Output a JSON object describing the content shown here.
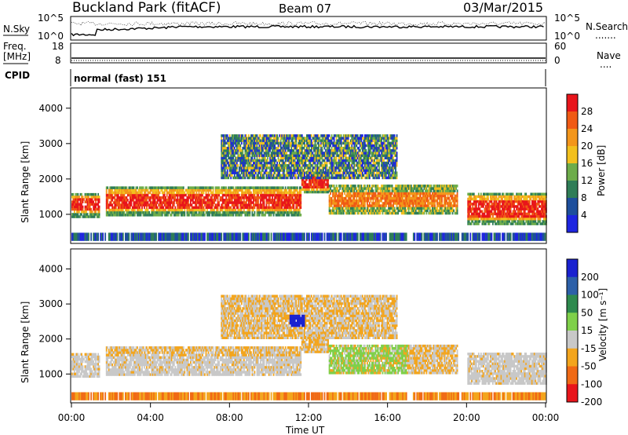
{
  "header": {
    "title": "Buckland Park (fitACF)",
    "beam": "Beam 07",
    "date": "03/Mar/2015"
  },
  "noise_panel": {
    "left_label": "N.Sky",
    "right_label": "N.Search",
    "tick_top": "10^5",
    "tick_bottom": "10^0"
  },
  "freq_panel": {
    "left_label_line1": "Freq.",
    "left_label_line2": "[MHz]",
    "left_ticks": [
      "18",
      "8"
    ],
    "right_label": "Nave",
    "right_ticks": [
      "60",
      "0"
    ]
  },
  "cpid_panel": {
    "label": "CPID",
    "value": "normal (fast) 151"
  },
  "chart_data": [
    {
      "type": "heatmap",
      "name": "power",
      "ylabel": "Slant Range [km]",
      "xlabel": "Time UT",
      "x_ticks": [
        "00:00",
        "04:00",
        "08:00",
        "12:00",
        "16:00",
        "20:00",
        "00:00"
      ],
      "x_range_hours": [
        0,
        24
      ],
      "y_ticks": [
        1000,
        2000,
        3000,
        4000
      ],
      "ylim": [
        200,
        4550
      ],
      "colorbar": {
        "label": "Power [dB]",
        "ticks": [
          "28",
          "24",
          "20",
          "16",
          "12",
          "8",
          "4"
        ],
        "colors": [
          "#e8151b",
          "#f05a14",
          "#f3961b",
          "#f2c01e",
          "#6dac4a",
          "#2f7d57",
          "#1e4f9c",
          "#1e25e0"
        ]
      },
      "echo_bands": [
        {
          "t_start": 0.0,
          "t_end": 1.4,
          "range_low": 900,
          "range_high": 1600,
          "level": "strong"
        },
        {
          "t_start": 1.7,
          "t_end": 11.6,
          "range_low": 950,
          "range_high": 1750,
          "level": "strong"
        },
        {
          "t_start": 11.6,
          "t_end": 13.0,
          "range_low": 1600,
          "range_high": 2200,
          "level": "strong"
        },
        {
          "t_start": 13.0,
          "t_end": 19.5,
          "range_low": 1000,
          "range_high": 1800,
          "level": "medium"
        },
        {
          "t_start": 20.0,
          "t_end": 24.0,
          "range_low": 700,
          "range_high": 1600,
          "level": "strong"
        },
        {
          "t_start": 7.5,
          "t_end": 16.5,
          "range_low": 2000,
          "range_high": 3200,
          "level": "weak"
        }
      ]
    },
    {
      "type": "heatmap",
      "name": "velocity",
      "ylabel": "Slant Range [km]",
      "xlabel": "Time UT",
      "x_ticks": [
        "00:00",
        "04:00",
        "08:00",
        "12:00",
        "16:00",
        "20:00",
        "00:00"
      ],
      "x_range_hours": [
        0,
        24
      ],
      "y_ticks": [
        1000,
        2000,
        3000,
        4000
      ],
      "ylim": [
        200,
        4550
      ],
      "colorbar": {
        "label": "Velocity [m s⁻¹]",
        "ticks": [
          "200",
          "100",
          "50",
          "15",
          "-15",
          "-50",
          "-100",
          "-200"
        ],
        "colors": [
          "#1a22d0",
          "#2c60a8",
          "#2e8a4e",
          "#7fd04a",
          "#c8c8c8",
          "#f3a51d",
          "#f06a15",
          "#e8151b"
        ]
      }
    }
  ]
}
